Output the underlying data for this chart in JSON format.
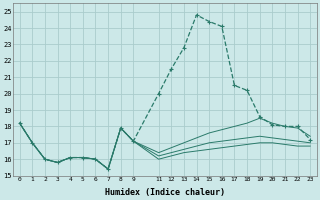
{
  "xlabel": "Humidex (Indice chaleur)",
  "bg_color": "#cce8e8",
  "grid_color": "#aacccc",
  "line_color": "#2a7a6a",
  "xlim": [
    -0.5,
    23.5
  ],
  "ylim": [
    15,
    25.5
  ],
  "yticks": [
    15,
    16,
    17,
    18,
    19,
    20,
    21,
    22,
    23,
    24,
    25
  ],
  "xtick_positions": [
    0,
    1,
    2,
    3,
    4,
    5,
    6,
    7,
    8,
    9,
    11,
    12,
    13,
    14,
    15,
    16,
    17,
    18,
    19,
    20,
    21,
    22,
    23
  ],
  "xtick_labels": [
    "0",
    "1",
    "2",
    "3",
    "4",
    "5",
    "6",
    "7",
    "8",
    "9",
    "11",
    "12",
    "13",
    "14",
    "15",
    "16",
    "17",
    "18",
    "19",
    "20",
    "21",
    "22",
    "23"
  ],
  "lines": [
    {
      "x": [
        0,
        1,
        2,
        3,
        4,
        5,
        6,
        7,
        8,
        9,
        11,
        12,
        13,
        14,
        15,
        16,
        17,
        18,
        19,
        20,
        21,
        22,
        23
      ],
      "y": [
        18.2,
        17.0,
        16.0,
        15.8,
        16.1,
        16.1,
        16.0,
        15.4,
        17.9,
        17.1,
        20.0,
        21.5,
        22.8,
        24.8,
        24.4,
        24.1,
        20.5,
        20.2,
        18.6,
        18.1,
        18.0,
        18.0,
        17.2
      ],
      "linestyle": "--",
      "marker": "+"
    },
    {
      "x": [
        0,
        1,
        2,
        3,
        4,
        5,
        6,
        7,
        8,
        9,
        11,
        12,
        13,
        14,
        15,
        16,
        17,
        18,
        19,
        20,
        21,
        22,
        23
      ],
      "y": [
        18.2,
        17.0,
        16.0,
        15.8,
        16.1,
        16.1,
        16.0,
        15.4,
        17.9,
        17.1,
        16.4,
        16.7,
        17.0,
        17.3,
        17.6,
        17.8,
        18.0,
        18.2,
        18.5,
        18.2,
        18.0,
        17.9,
        17.4
      ],
      "linestyle": "-",
      "marker": null
    },
    {
      "x": [
        0,
        1,
        2,
        3,
        4,
        5,
        6,
        7,
        8,
        9,
        11,
        12,
        13,
        14,
        15,
        16,
        17,
        18,
        19,
        20,
        21,
        22,
        23
      ],
      "y": [
        18.2,
        17.0,
        16.0,
        15.8,
        16.1,
        16.1,
        16.0,
        15.4,
        17.9,
        17.1,
        16.2,
        16.4,
        16.6,
        16.8,
        17.0,
        17.1,
        17.2,
        17.3,
        17.4,
        17.3,
        17.2,
        17.1,
        17.0
      ],
      "linestyle": "-",
      "marker": null
    },
    {
      "x": [
        0,
        1,
        2,
        3,
        4,
        5,
        6,
        7,
        8,
        9,
        11,
        12,
        13,
        14,
        15,
        16,
        17,
        18,
        19,
        20,
        21,
        22,
        23
      ],
      "y": [
        18.2,
        17.0,
        16.0,
        15.8,
        16.1,
        16.1,
        16.0,
        15.4,
        17.9,
        17.1,
        16.0,
        16.2,
        16.4,
        16.5,
        16.6,
        16.7,
        16.8,
        16.9,
        17.0,
        17.0,
        16.9,
        16.8,
        16.8
      ],
      "linestyle": "-",
      "marker": null
    }
  ]
}
